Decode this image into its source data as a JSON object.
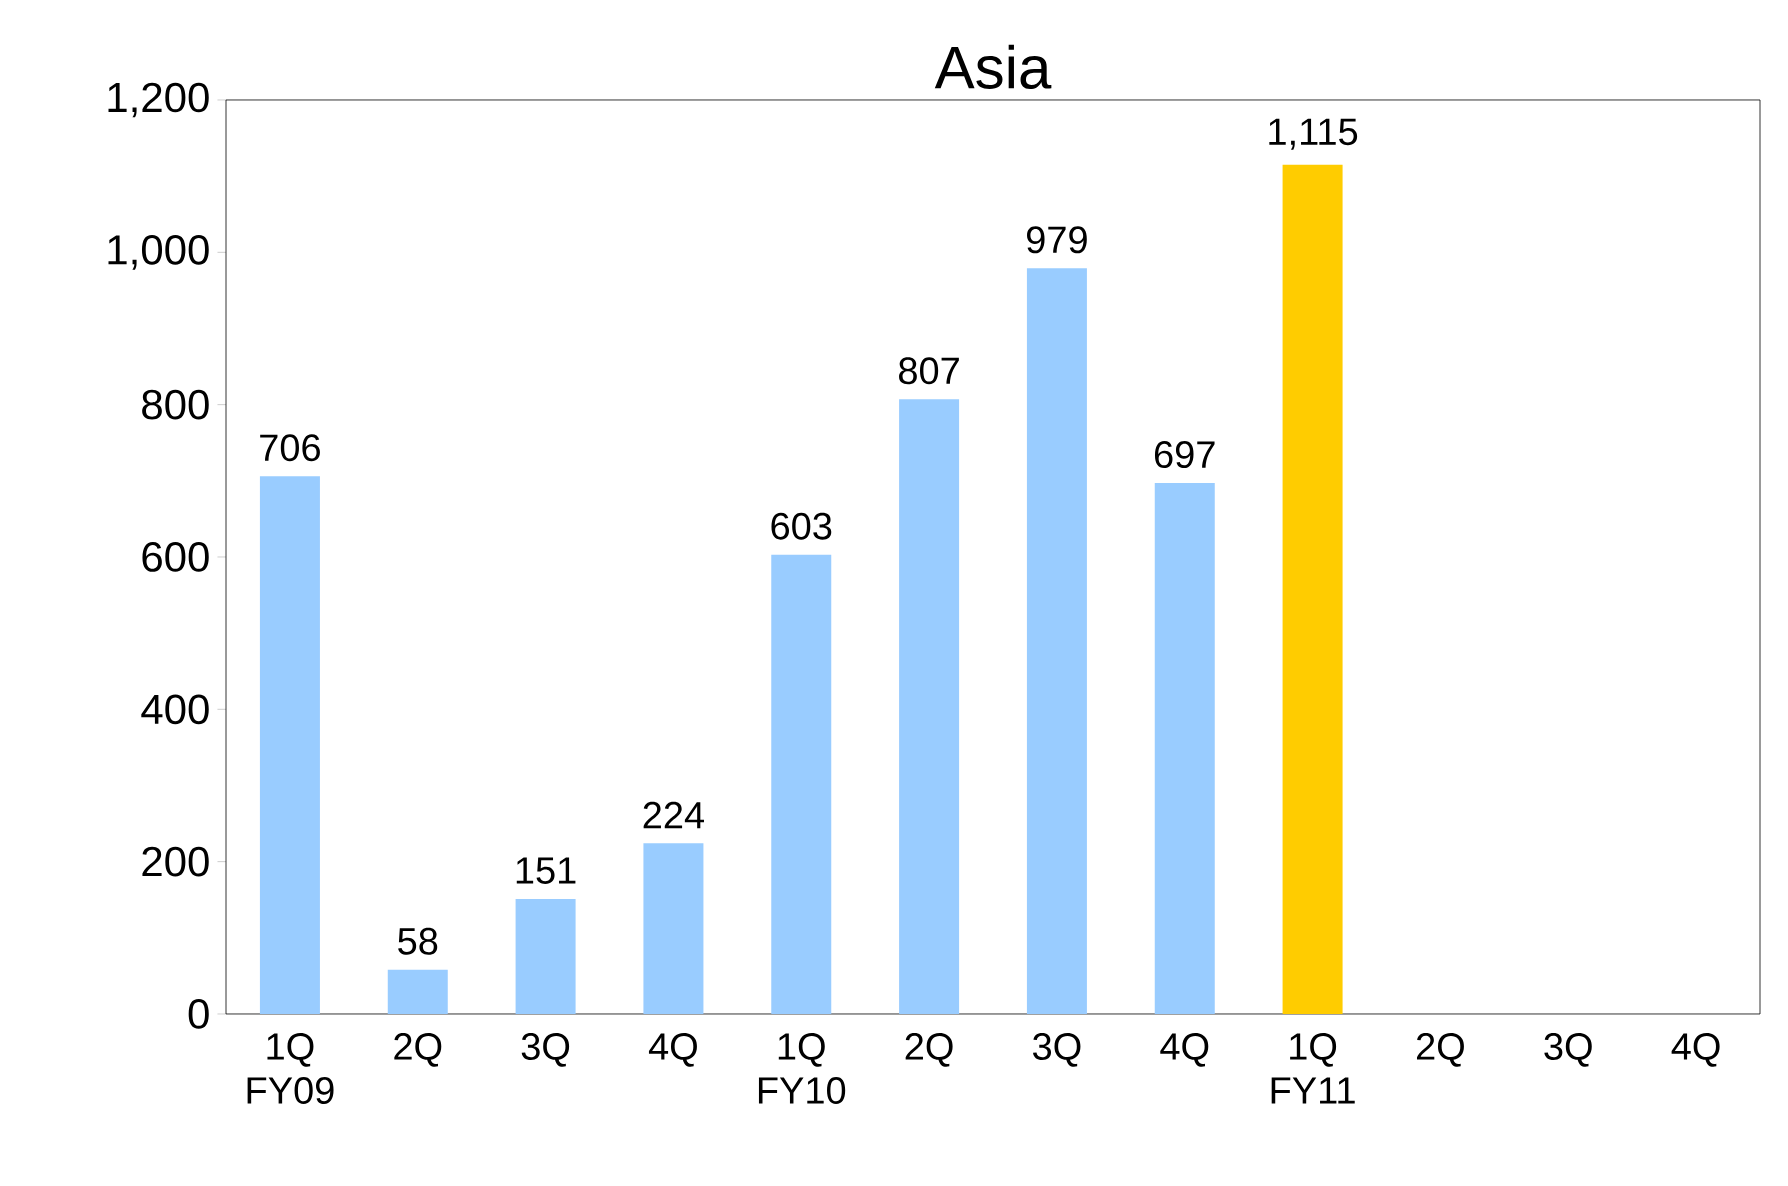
{
  "chart_data": {
    "type": "bar",
    "title": "Asia",
    "categories": [
      "1Q FY09",
      "2Q",
      "3Q",
      "4Q",
      "1Q FY10",
      "2Q",
      "3Q",
      "4Q",
      "1Q FY11",
      "2Q",
      "3Q",
      "4Q"
    ],
    "values": [
      706,
      58,
      151,
      224,
      603,
      807,
      979,
      697,
      1115,
      null,
      null,
      null
    ],
    "colors": [
      "#99ccff",
      "#99ccff",
      "#99ccff",
      "#99ccff",
      "#99ccff",
      "#99ccff",
      "#99ccff",
      "#99ccff",
      "#ffcc00",
      "#99ccff",
      "#99ccff",
      "#99ccff"
    ],
    "value_labels": [
      "706",
      "58",
      "151",
      "224",
      "603",
      "807",
      "979",
      "697",
      "1,115",
      null,
      null,
      null
    ],
    "ylim": [
      0,
      1200
    ],
    "yticks": [
      0,
      200,
      400,
      600,
      800,
      {
        "value": 1000,
        "label": "1,000"
      },
      {
        "value": 1200,
        "label": "1,200"
      }
    ],
    "grid": false
  }
}
